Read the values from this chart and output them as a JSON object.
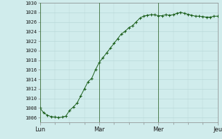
{
  "background_color": "#d0ecec",
  "grid_color_major": "#b8d8d8",
  "grid_color_minor": "#c8e4e4",
  "line_color": "#1a5e1a",
  "marker_color": "#1a5e1a",
  "x_tick_labels": [
    "Lun",
    "Mar",
    "Mer",
    "Jeu"
  ],
  "x_tick_positions": [
    0,
    8,
    16,
    24
  ],
  "y_min": 1005,
  "y_max": 1030,
  "y_tick_step": 2,
  "data_x": [
    0,
    0.5,
    1,
    1.5,
    2,
    2.5,
    3,
    3.5,
    4,
    4.5,
    5,
    5.5,
    6,
    6.5,
    7,
    7.5,
    8,
    8.5,
    9,
    9.5,
    10,
    10.5,
    11,
    11.5,
    12,
    12.5,
    13,
    13.5,
    14,
    14.5,
    15,
    15.5,
    16,
    16.5,
    17,
    17.5,
    18,
    18.5,
    19,
    19.5,
    20,
    20.5,
    21,
    21.5,
    22,
    22.5,
    23,
    23.5,
    24
  ],
  "data_y": [
    1008,
    1007,
    1006.5,
    1006.2,
    1006.1,
    1006.0,
    1006.1,
    1006.3,
    1007.5,
    1008.2,
    1009.0,
    1010.5,
    1012.0,
    1013.5,
    1014.2,
    1016.0,
    1017.5,
    1018.5,
    1019.5,
    1020.5,
    1021.5,
    1022.5,
    1023.5,
    1024.0,
    1024.8,
    1025.2,
    1026.0,
    1026.8,
    1027.2,
    1027.4,
    1027.5,
    1027.5,
    1027.3,
    1027.3,
    1027.5,
    1027.4,
    1027.5,
    1027.8,
    1028.0,
    1027.8,
    1027.6,
    1027.4,
    1027.2,
    1027.2,
    1027.1,
    1027.0,
    1027.0,
    1027.2,
    1027.2
  ]
}
